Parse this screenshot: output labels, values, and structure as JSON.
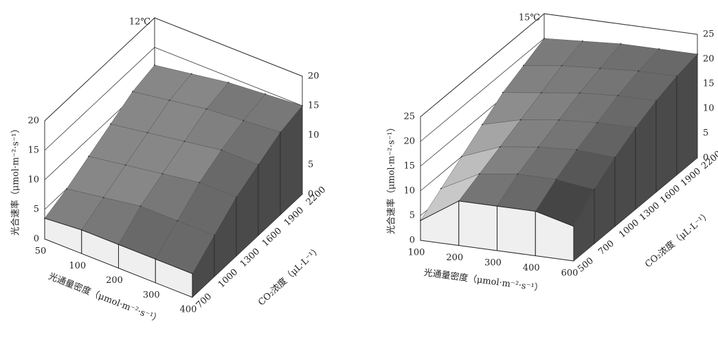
{
  "chart_data": [
    {
      "type": "surface3d",
      "title": "12℃",
      "zlabel": "光合速率（μmol·m⁻²·s⁻¹）",
      "xlabel": "光通量密度（μmol·m⁻²·s⁻¹）",
      "ylabel": "CO₂浓度（μL·L⁻¹）",
      "categories": [
        50,
        100,
        200,
        300,
        400
      ],
      "depth_categories": [
        700,
        1000,
        1300,
        1600,
        1900,
        2200
      ],
      "values": [
        [
          3.5,
          5,
          7,
          9,
          11,
          12
        ],
        [
          4,
          6,
          8,
          10,
          12,
          13
        ],
        [
          4,
          7,
          9,
          11,
          13,
          14
        ],
        [
          4,
          7,
          10,
          12,
          13.5,
          14.5
        ],
        [
          4,
          7,
          10,
          12,
          14,
          15
        ]
      ],
      "zlim": [
        0,
        20
      ],
      "zticks": [
        0,
        5,
        10,
        15,
        20
      ],
      "color": "#6a6a6a"
    },
    {
      "type": "surface3d",
      "title": "15℃",
      "zlabel": "光合速率（μmol·m⁻²·s⁻¹）",
      "xlabel": "光通量密度（μmol·m⁻²·s⁻¹）",
      "ylabel": "CO₂浓度（μL·L⁻¹）",
      "categories": [
        100,
        200,
        300,
        400,
        600
      ],
      "depth_categories": [
        500,
        700,
        1000,
        1300,
        1600,
        1900,
        2200
      ],
      "values": [
        [
          4,
          7,
          10,
          13,
          16,
          18,
          20
        ],
        [
          9,
          11,
          13,
          15,
          17,
          19,
          20.5
        ],
        [
          9,
          12,
          14,
          16,
          18,
          19.5,
          21
        ],
        [
          9,
          12,
          14.5,
          16.5,
          18.5,
          20,
          21
        ],
        [
          7,
          11,
          14,
          16.5,
          18.5,
          20,
          21
        ]
      ],
      "zlim": [
        0,
        25
      ],
      "zticks": [
        0,
        5,
        10,
        15,
        20,
        25
      ],
      "color": "#6a6a6a"
    }
  ]
}
